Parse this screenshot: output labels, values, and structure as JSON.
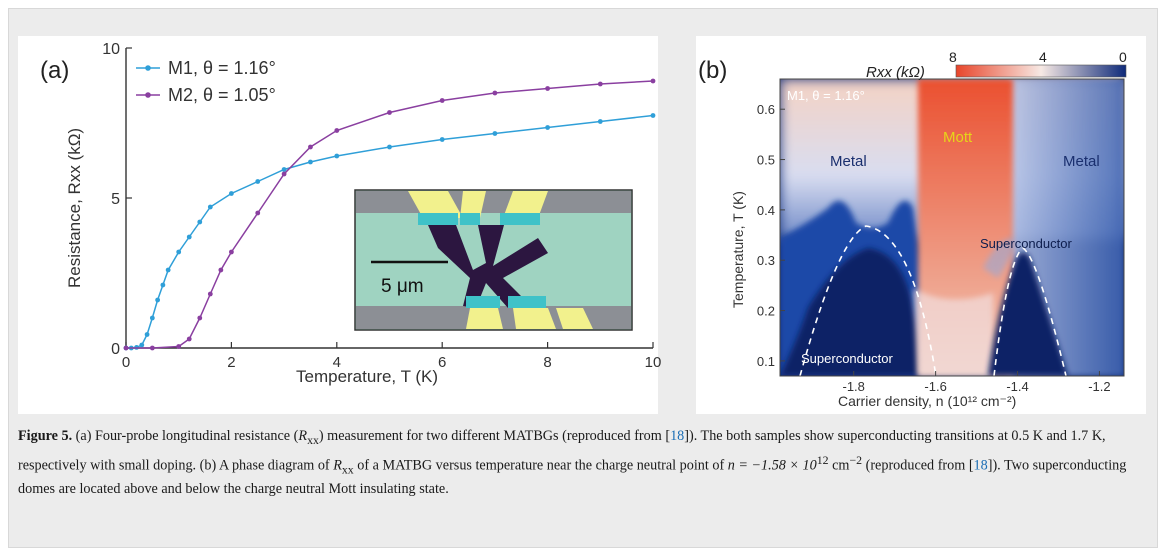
{
  "figure": {
    "caption": {
      "label": "Figure 5.",
      "text_1": " (a) Four-probe longitudinal resistance (",
      "rxx_sym": "R",
      "rxx_sub": "xx",
      "text_2": ") measurement for two different MATBGs (reproduced from [",
      "cite_1": "18",
      "text_3": "]). The both samples show superconducting transitions at 0.5 K and 1.7 K, respectively with small doping. (b) A phase diagram of ",
      "rxx_sym_2": "R",
      "rxx_sub_2": "xx",
      "text_4": " of a MATBG versus temperature near the charge neutral point of ",
      "n_expr": "n = −1.58 × 10",
      "n_exp": "12",
      "n_unit": " cm",
      "n_unit_exp": "−2",
      "text_5": " (reproduced from [",
      "cite_2": "18",
      "text_6": "]). Two superconducting domes are located above and below the charge neutral Mott insulating state."
    }
  },
  "chart_data": [
    {
      "type": "line",
      "panel_label": "(a)",
      "xlabel": "Temperature, T (K)",
      "ylabel": "Resistance, Rxx (kΩ)",
      "xlim": [
        0,
        10
      ],
      "ylim": [
        0,
        10
      ],
      "xticks": [
        "0",
        "2",
        "4",
        "6",
        "8",
        "10"
      ],
      "yticks": [
        "0",
        "5",
        "10"
      ],
      "legend_position": "top-left",
      "series": [
        {
          "name": "M1, θ = 1.16°",
          "color": "#2f9fd8",
          "x": [
            0,
            0.1,
            0.2,
            0.3,
            0.4,
            0.5,
            0.6,
            0.7,
            0.8,
            1.0,
            1.2,
            1.4,
            1.6,
            2.0,
            2.5,
            3.0,
            3.5,
            4.0,
            5.0,
            6.0,
            7.0,
            8.0,
            9.0,
            10.0
          ],
          "y": [
            0,
            0,
            0.02,
            0.1,
            0.45,
            1.0,
            1.6,
            2.1,
            2.6,
            3.2,
            3.7,
            4.2,
            4.7,
            5.15,
            5.55,
            5.95,
            6.2,
            6.4,
            6.7,
            6.95,
            7.15,
            7.35,
            7.55,
            7.75
          ]
        },
        {
          "name": "M2, θ = 1.05°",
          "color": "#8a3fa0",
          "x": [
            0,
            0.5,
            1.0,
            1.2,
            1.4,
            1.6,
            1.8,
            2.0,
            2.5,
            3.0,
            3.5,
            4.0,
            5.0,
            6.0,
            7.0,
            8.0,
            9.0,
            10.0
          ],
          "y": [
            0,
            0,
            0.05,
            0.3,
            1.0,
            1.8,
            2.6,
            3.2,
            4.5,
            5.8,
            6.7,
            7.25,
            7.85,
            8.25,
            8.5,
            8.65,
            8.8,
            8.9
          ]
        }
      ],
      "inset": {
        "scale_bar_label": "5 μm"
      }
    },
    {
      "type": "heatmap",
      "panel_label": "(b)",
      "xlabel": "Carrier density, n (10¹² cm⁻²)",
      "ylabel": "Temperature, T (K)",
      "xlim": [
        -1.98,
        -1.14
      ],
      "ylim": [
        0.07,
        0.66
      ],
      "xticks": [
        "-1.8",
        "-1.6",
        "-1.4",
        "-1.2"
      ],
      "yticks": [
        "0.1",
        "0.2",
        "0.3",
        "0.4",
        "0.5",
        "0.6"
      ],
      "colorbar": {
        "label": "Rxx (kΩ)",
        "ticks": [
          "8",
          "4",
          "0"
        ],
        "colors": [
          "#e8452a",
          "#f7e9e4",
          "#0e2a7a"
        ]
      },
      "sample_label": "M1, θ = 1.16°",
      "regions": [
        "Metal",
        "Mott",
        "Metal",
        "Superconductor",
        "Superconductor"
      ]
    }
  ]
}
